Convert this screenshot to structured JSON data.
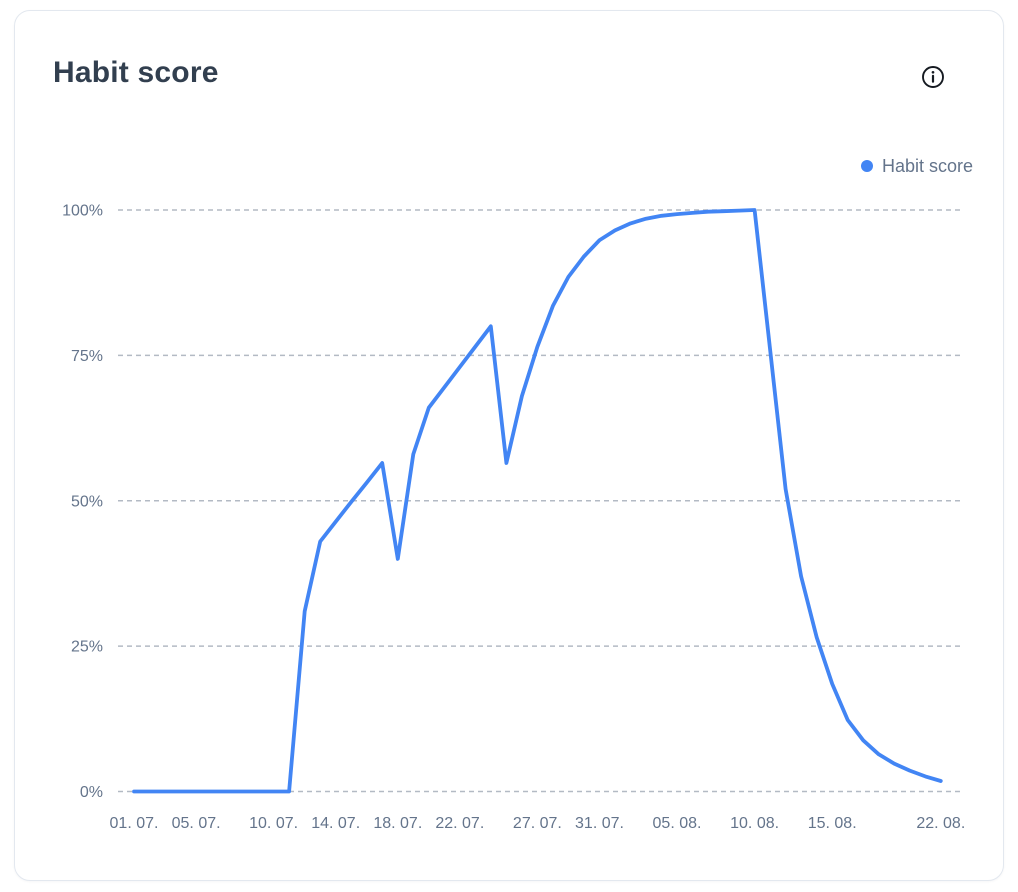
{
  "header": {
    "title": "Habit score"
  },
  "legend": {
    "items": [
      {
        "label": "Habit score",
        "color": "#4285f4"
      }
    ]
  },
  "colors": {
    "line": "#4285f4",
    "axis_text": "#64748b",
    "gridline": "#b3bac4",
    "title_text": "#323f4f",
    "card_border": "#e3e8ef",
    "info_icon": "#151a21"
  },
  "chart_data": {
    "type": "line",
    "title": "Habit score",
    "xlabel": "",
    "ylabel": "",
    "ylim": [
      0,
      100
    ],
    "grid": "horizontal dashed lines only",
    "legend_position": "top-right",
    "y_ticks": [
      {
        "value": 0,
        "label": "0%"
      },
      {
        "value": 25,
        "label": "25%"
      },
      {
        "value": 50,
        "label": "50%"
      },
      {
        "value": 75,
        "label": "75%"
      },
      {
        "value": 100,
        "label": "100%"
      }
    ],
    "x_ticks": [
      {
        "index": 0,
        "label": "01. 07."
      },
      {
        "index": 4,
        "label": "05. 07."
      },
      {
        "index": 9,
        "label": "10. 07."
      },
      {
        "index": 13,
        "label": "14. 07."
      },
      {
        "index": 17,
        "label": "18. 07."
      },
      {
        "index": 21,
        "label": "22. 07."
      },
      {
        "index": 26,
        "label": "27. 07."
      },
      {
        "index": 30,
        "label": "31. 07."
      },
      {
        "index": 35,
        "label": "05. 08."
      },
      {
        "index": 40,
        "label": "10. 08."
      },
      {
        "index": 45,
        "label": "15. 08."
      },
      {
        "index": 52,
        "label": "22. 08."
      }
    ],
    "x": [
      "01. 07.",
      "02. 07.",
      "03. 07.",
      "04. 07.",
      "05. 07.",
      "06. 07.",
      "07. 07.",
      "08. 07.",
      "09. 07.",
      "10. 07.",
      "11. 07.",
      "12. 07.",
      "13. 07.",
      "14. 07.",
      "15. 07.",
      "16. 07.",
      "17. 07.",
      "18. 07.",
      "19. 07.",
      "20. 07.",
      "21. 07.",
      "22. 07.",
      "23. 07.",
      "24. 07.",
      "25. 07.",
      "26. 07.",
      "27. 07.",
      "28. 07.",
      "29. 07.",
      "30. 07.",
      "31. 07.",
      "01. 08.",
      "02. 08.",
      "03. 08.",
      "04. 08.",
      "05. 08.",
      "06. 08.",
      "07. 08.",
      "08. 08.",
      "09. 08.",
      "10. 08.",
      "11. 08.",
      "12. 08.",
      "13. 08.",
      "14. 08.",
      "15. 08.",
      "16. 08.",
      "17. 08.",
      "18. 08.",
      "19. 08.",
      "20. 08.",
      "21. 08.",
      "22. 08."
    ],
    "series": [
      {
        "name": "Habit score",
        "color": "#4285f4",
        "unit": "%",
        "values": [
          0,
          0,
          0,
          0,
          0,
          0,
          0,
          0,
          0,
          0,
          0,
          31,
          43,
          46.4,
          49.8,
          53.1,
          56.5,
          40,
          58,
          66,
          69.5,
          73,
          76.5,
          80,
          56.5,
          68,
          76.5,
          83.5,
          88.5,
          92,
          94.8,
          96.5,
          97.7,
          98.5,
          99,
          99.3,
          99.5,
          99.7,
          99.8,
          99.9,
          100,
          76,
          52,
          37,
          26.5,
          18.5,
          12.3,
          8.8,
          6.4,
          4.8,
          3.6,
          2.6,
          1.8
        ]
      }
    ]
  }
}
